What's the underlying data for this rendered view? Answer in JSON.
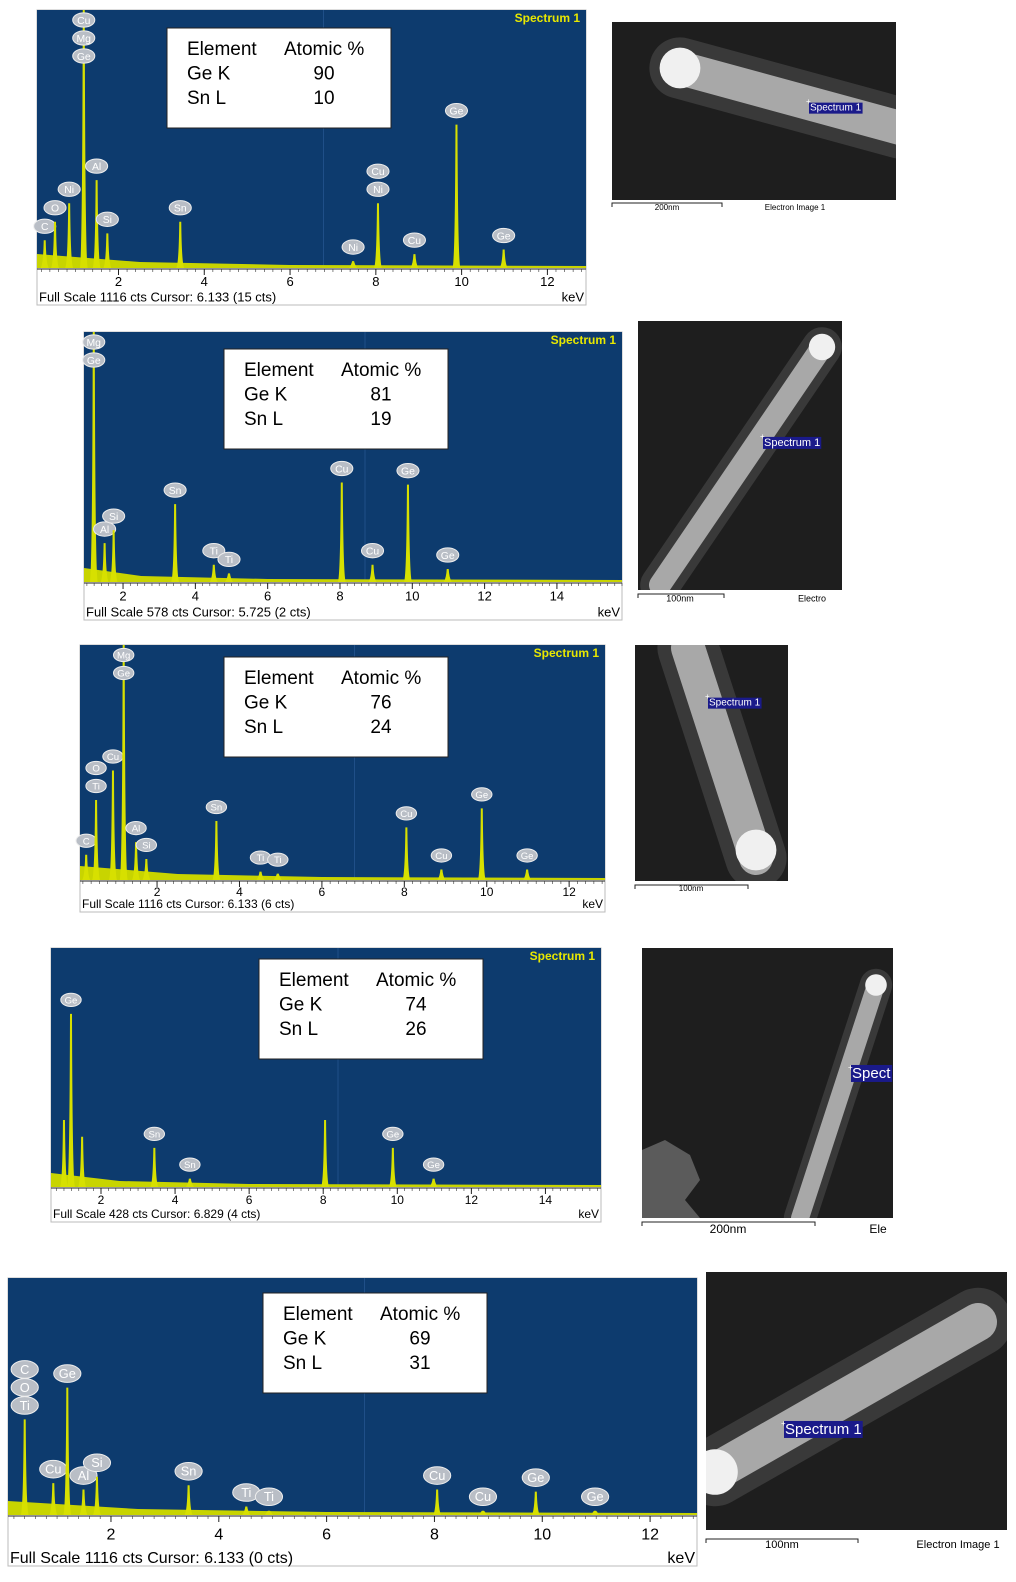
{
  "panels": [
    {
      "spectrum": {
        "title": "Spectrum 1",
        "xlim": [
          0.1,
          12.9
        ],
        "ylim": [
          0,
          1116
        ],
        "xticks": [
          2,
          4,
          6,
          8,
          10,
          12
        ],
        "footer": "Full Scale 1116 cts Cursor: 6.133  (15 cts)",
        "unit": "keV",
        "peaks": [
          {
            "x": 0.28,
            "y": 120,
            "labels": [
              "C"
            ]
          },
          {
            "x": 0.52,
            "y": 200,
            "labels": [
              "O"
            ]
          },
          {
            "x": 0.85,
            "y": 280,
            "labels": [
              "Ni"
            ]
          },
          {
            "x": 1.19,
            "y": 1116,
            "labels": [
              "Cu",
              "Mg",
              "Ge"
            ]
          },
          {
            "x": 1.49,
            "y": 380,
            "labels": [
              "Al"
            ]
          },
          {
            "x": 1.74,
            "y": 150,
            "labels": [
              "Si"
            ]
          },
          {
            "x": 3.44,
            "y": 200,
            "labels": [
              "Sn"
            ]
          },
          {
            "x": 7.47,
            "y": 30,
            "labels": [
              "Ni"
            ]
          },
          {
            "x": 8.05,
            "y": 280,
            "labels": [
              "Cu",
              "Ni"
            ]
          },
          {
            "x": 8.9,
            "y": 60,
            "labels": [
              "Cu"
            ]
          },
          {
            "x": 9.88,
            "y": 620,
            "labels": [
              "Ge"
            ]
          },
          {
            "x": 10.98,
            "y": 80,
            "labels": [
              "Ge"
            ]
          }
        ]
      },
      "table": [
        [
          "Element",
          "Atomic %"
        ],
        [
          "Ge K",
          90
        ],
        [
          "Sn  L",
          10
        ]
      ],
      "image": {
        "marker": "Spectrum 1",
        "scale": "200nm",
        "caption": "Electron Image 1"
      }
    },
    {
      "spectrum": {
        "title": "Spectrum 1",
        "xlim": [
          0.92,
          15.8
        ],
        "ylim": [
          0,
          578
        ],
        "xticks": [
          2,
          4,
          6,
          8,
          10,
          12,
          14
        ],
        "footer": "Full Scale 578 cts Cursor: 5.725  (2 cts)",
        "unit": "keV",
        "peaks": [
          {
            "x": 1.19,
            "y": 578,
            "labels": [
              "Mg",
              "Ge"
            ]
          },
          {
            "x": 1.49,
            "y": 90,
            "labels": [
              "Al"
            ]
          },
          {
            "x": 1.74,
            "y": 120,
            "labels": [
              "Si"
            ]
          },
          {
            "x": 3.44,
            "y": 180,
            "labels": [
              "Sn"
            ]
          },
          {
            "x": 4.51,
            "y": 40,
            "labels": [
              "Ti"
            ]
          },
          {
            "x": 4.93,
            "y": 20,
            "labels": [
              "Ti"
            ]
          },
          {
            "x": 8.05,
            "y": 230,
            "labels": [
              "Cu"
            ]
          },
          {
            "x": 8.9,
            "y": 40,
            "labels": [
              "Cu"
            ]
          },
          {
            "x": 9.88,
            "y": 225,
            "labels": [
              "Ge"
            ]
          },
          {
            "x": 10.98,
            "y": 30,
            "labels": [
              "Ge"
            ]
          }
        ]
      },
      "table": [
        [
          "Element",
          "Atomic %"
        ],
        [
          "Ge K",
          81
        ],
        [
          "Sn  L",
          19
        ]
      ],
      "image": {
        "marker": "Spectrum 1",
        "scale": "100nm",
        "caption": "Electro"
      }
    },
    {
      "spectrum": {
        "title": "Spectrum 1",
        "xlim": [
          0.13,
          12.87
        ],
        "ylim": [
          0,
          1116
        ],
        "xticks": [
          2,
          4,
          6,
          8,
          10,
          12
        ],
        "footer": "Full Scale 1116 cts Cursor: 6.133  (6 cts)",
        "unit": "keV",
        "peaks": [
          {
            "x": 0.28,
            "y": 120,
            "labels": [
              "C"
            ]
          },
          {
            "x": 0.52,
            "y": 380,
            "labels": [
              "O",
              "Ti"
            ]
          },
          {
            "x": 0.93,
            "y": 520,
            "labels": [
              "Cu"
            ]
          },
          {
            "x": 1.19,
            "y": 1116,
            "labels": [
              "Mg",
              "Ge"
            ]
          },
          {
            "x": 1.49,
            "y": 180,
            "labels": [
              "Al"
            ]
          },
          {
            "x": 1.74,
            "y": 100,
            "labels": [
              "Si"
            ]
          },
          {
            "x": 3.44,
            "y": 280,
            "labels": [
              "Sn"
            ]
          },
          {
            "x": 4.51,
            "y": 40,
            "labels": [
              "Ti"
            ]
          },
          {
            "x": 4.93,
            "y": 30,
            "labels": [
              "Ti"
            ]
          },
          {
            "x": 8.05,
            "y": 250,
            "labels": [
              "Cu"
            ]
          },
          {
            "x": 8.9,
            "y": 50,
            "labels": [
              "Cu"
            ]
          },
          {
            "x": 9.88,
            "y": 340,
            "labels": [
              "Ge"
            ]
          },
          {
            "x": 10.98,
            "y": 50,
            "labels": [
              "Ge"
            ]
          }
        ]
      },
      "table": [
        [
          "Element",
          "Atomic %"
        ],
        [
          "Ge K",
          76
        ],
        [
          "Sn  L",
          24
        ]
      ],
      "image": {
        "marker": "Spectrum 1",
        "scale": "100nm"
      }
    },
    {
      "spectrum": {
        "title": "Spectrum 1",
        "xlim": [
          0.65,
          15.5
        ],
        "ylim": [
          0,
          428
        ],
        "xticks": [
          2,
          4,
          6,
          8,
          10,
          12,
          14
        ],
        "footer": "Full Scale 428 cts Cursor: 6.829  (4 cts)",
        "unit": "keV",
        "peaks": [
          {
            "x": 1.0,
            "y": 120
          },
          {
            "x": 1.19,
            "y": 310,
            "labels": [
              "Ge"
            ]
          },
          {
            "x": 1.49,
            "y": 90
          },
          {
            "x": 3.44,
            "y": 70,
            "labels": [
              "Sn"
            ]
          },
          {
            "x": 4.4,
            "y": 15,
            "labels": [
              "Sn"
            ]
          },
          {
            "x": 8.05,
            "y": 120
          },
          {
            "x": 9.88,
            "y": 70,
            "labels": [
              "Ge"
            ]
          },
          {
            "x": 10.98,
            "y": 15,
            "labels": [
              "Ge"
            ]
          }
        ]
      },
      "table": [
        [
          "Element",
          "Atomic %"
        ],
        [
          "Ge K",
          74
        ],
        [
          "Sn  L",
          26
        ]
      ],
      "image": {
        "marker": "Spect",
        "scale": "200nm",
        "caption": "Ele"
      }
    },
    {
      "spectrum": {
        "xlim": [
          0.09,
          12.87
        ],
        "ylim": [
          0,
          1116
        ],
        "xticks": [
          2,
          4,
          6,
          8,
          10,
          12
        ],
        "footer": "Full Scale 1116 cts Cursor: 6.133  (0 cts)",
        "unit": "keV",
        "peaks": [
          {
            "x": 0.4,
            "y": 450,
            "labels": [
              "C",
              "O",
              "Ti"
            ]
          },
          {
            "x": 0.93,
            "y": 150,
            "labels": [
              "Cu"
            ]
          },
          {
            "x": 1.19,
            "y": 600,
            "labels": [
              "Ge"
            ]
          },
          {
            "x": 1.49,
            "y": 120,
            "labels": [
              "Al"
            ]
          },
          {
            "x": 1.74,
            "y": 180,
            "labels": [
              "Si"
            ]
          },
          {
            "x": 3.44,
            "y": 140,
            "labels": [
              "Sn"
            ]
          },
          {
            "x": 4.51,
            "y": 40,
            "labels": [
              "Ti"
            ]
          },
          {
            "x": 4.93,
            "y": 20,
            "labels": [
              "Ti"
            ]
          },
          {
            "x": 8.05,
            "y": 120,
            "labels": [
              "Cu"
            ]
          },
          {
            "x": 8.9,
            "y": 20,
            "labels": [
              "Cu"
            ]
          },
          {
            "x": 9.88,
            "y": 110,
            "labels": [
              "Ge"
            ]
          },
          {
            "x": 10.98,
            "y": 20,
            "labels": [
              "Ge"
            ]
          }
        ]
      },
      "table": [
        [
          "Element",
          "Atomic %"
        ],
        [
          "Ge K",
          69
        ],
        [
          "Sn  L",
          31
        ]
      ],
      "image": {
        "marker": "Spectrum 1",
        "scale": "100nm",
        "caption": "Electron Image 1"
      }
    }
  ]
}
